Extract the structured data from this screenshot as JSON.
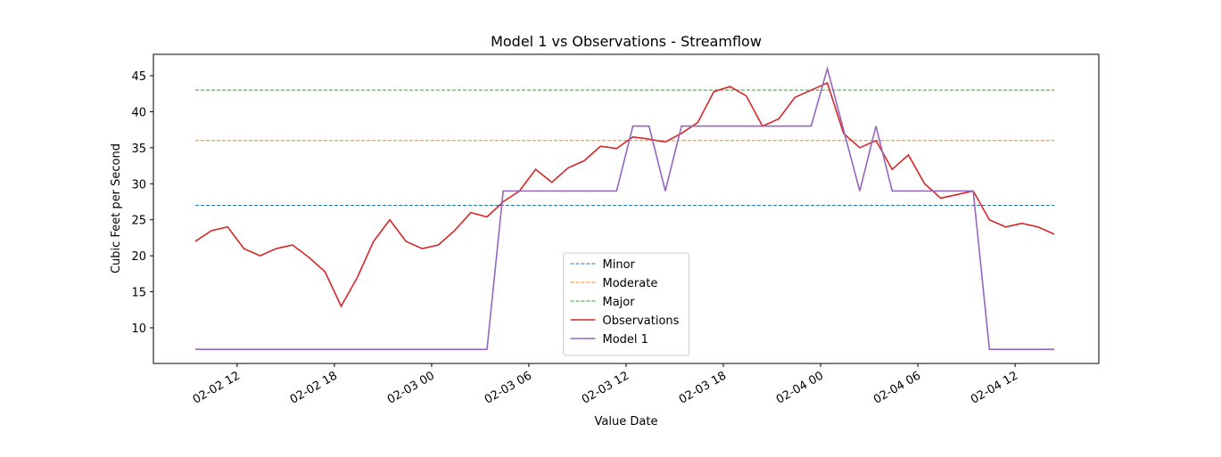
{
  "chart_data": {
    "type": "line",
    "title": "Model 1 vs Observations - Streamflow",
    "xlabel": "Value Date",
    "ylabel": "Cubic Feet per Second",
    "x": [
      "02-02 09:25",
      "02-02 10:25",
      "02-02 11:25",
      "02-02 12:25",
      "02-02 13:25",
      "02-02 14:25",
      "02-02 15:25",
      "02-02 16:25",
      "02-02 17:25",
      "02-02 18:25",
      "02-02 19:25",
      "02-02 20:25",
      "02-02 21:25",
      "02-02 22:25",
      "02-02 23:25",
      "02-03 00:25",
      "02-03 01:25",
      "02-03 02:25",
      "02-03 03:25",
      "02-03 04:25",
      "02-03 05:25",
      "02-03 06:25",
      "02-03 07:25",
      "02-03 08:25",
      "02-03 09:25",
      "02-03 10:25",
      "02-03 11:25",
      "02-03 12:25",
      "02-03 13:25",
      "02-03 14:25",
      "02-03 15:25",
      "02-03 16:25",
      "02-03 17:25",
      "02-03 18:25",
      "02-03 19:25",
      "02-03 20:25",
      "02-03 21:25",
      "02-03 22:25",
      "02-03 23:25",
      "02-04 00:25",
      "02-04 01:25",
      "02-04 02:25",
      "02-04 03:25",
      "02-04 04:25",
      "02-04 05:25",
      "02-04 06:25",
      "02-04 07:25",
      "02-04 08:25",
      "02-04 09:25",
      "02-04 10:25",
      "02-04 11:25",
      "02-04 12:25",
      "02-04 13:25",
      "02-04 14:25"
    ],
    "xlim": [
      "02-02 06:50",
      "02-04 17:10"
    ],
    "xticks": [
      {
        "value": "02-02 12:00",
        "label": "02-02 12"
      },
      {
        "value": "02-02 18:00",
        "label": "02-02 18"
      },
      {
        "value": "02-03 00:00",
        "label": "02-03 00"
      },
      {
        "value": "02-03 06:00",
        "label": "02-03 06"
      },
      {
        "value": "02-03 12:00",
        "label": "02-03 12"
      },
      {
        "value": "02-03 18:00",
        "label": "02-03 18"
      },
      {
        "value": "02-04 00:00",
        "label": "02-04 00"
      },
      {
        "value": "02-04 06:00",
        "label": "02-04 06"
      },
      {
        "value": "02-04 12:00",
        "label": "02-04 12"
      }
    ],
    "ylim": [
      5.05,
      47.97
    ],
    "yticks": [
      10,
      15,
      20,
      25,
      30,
      35,
      40,
      45
    ],
    "legend_loc": "lower center",
    "series": [
      {
        "name": "Minor",
        "color": "#1f77b4",
        "dashed": true,
        "values": [
          27,
          27,
          27,
          27,
          27,
          27,
          27,
          27,
          27,
          27,
          27,
          27,
          27,
          27,
          27,
          27,
          27,
          27,
          27,
          27,
          27,
          27,
          27,
          27,
          27,
          27,
          27,
          27,
          27,
          27,
          27,
          27,
          27,
          27,
          27,
          27,
          27,
          27,
          27,
          27,
          27,
          27,
          27,
          27,
          27,
          27,
          27,
          27,
          27,
          27,
          27,
          27,
          27,
          27
        ]
      },
      {
        "name": "Moderate",
        "color": "#ff7f0e",
        "dashed": true,
        "values": [
          36,
          36,
          36,
          36,
          36,
          36,
          36,
          36,
          36,
          36,
          36,
          36,
          36,
          36,
          36,
          36,
          36,
          36,
          36,
          36,
          36,
          36,
          36,
          36,
          36,
          36,
          36,
          36,
          36,
          36,
          36,
          36,
          36,
          36,
          36,
          36,
          36,
          36,
          36,
          36,
          36,
          36,
          36,
          36,
          36,
          36,
          36,
          36,
          36,
          36,
          36,
          36,
          36,
          36
        ]
      },
      {
        "name": "Major",
        "color": "#2ca02c",
        "dashed": true,
        "values": [
          43,
          43,
          43,
          43,
          43,
          43,
          43,
          43,
          43,
          43,
          43,
          43,
          43,
          43,
          43,
          43,
          43,
          43,
          43,
          43,
          43,
          43,
          43,
          43,
          43,
          43,
          43,
          43,
          43,
          43,
          43,
          43,
          43,
          43,
          43,
          43,
          43,
          43,
          43,
          43,
          43,
          43,
          43,
          43,
          43,
          43,
          43,
          43,
          43,
          43,
          43,
          43,
          43,
          43
        ]
      },
      {
        "name": "Observations",
        "color": "#d62728",
        "dashed": false,
        "values": [
          22,
          23.5,
          24,
          21,
          20,
          21,
          21.5,
          19.8,
          17.8,
          13,
          17,
          22,
          25,
          22,
          21,
          21.5,
          23.5,
          26,
          25.4,
          27.5,
          29,
          32,
          30.2,
          32.2,
          33.2,
          35.2,
          34.9,
          36.5,
          36.2,
          35.8,
          37,
          38.5,
          42.8,
          43.5,
          42.2,
          38,
          39,
          42,
          43,
          44,
          37,
          35,
          36,
          32,
          34,
          30,
          28,
          28.5,
          29,
          25,
          24,
          24.5,
          24,
          23
        ]
      },
      {
        "name": "Model 1",
        "color": "#9467bd",
        "dashed": false,
        "values": [
          7,
          7,
          7,
          7,
          7,
          7,
          7,
          7,
          7,
          7,
          7,
          7,
          7,
          7,
          7,
          7,
          7,
          7,
          7,
          29,
          29,
          29,
          29,
          29,
          29,
          29,
          29,
          38,
          38,
          29,
          38,
          38,
          38,
          38,
          38,
          38,
          38,
          38,
          38,
          46,
          37.5,
          29,
          38,
          29,
          29,
          29,
          29,
          29,
          29,
          7,
          7,
          7,
          7,
          7
        ]
      }
    ]
  }
}
